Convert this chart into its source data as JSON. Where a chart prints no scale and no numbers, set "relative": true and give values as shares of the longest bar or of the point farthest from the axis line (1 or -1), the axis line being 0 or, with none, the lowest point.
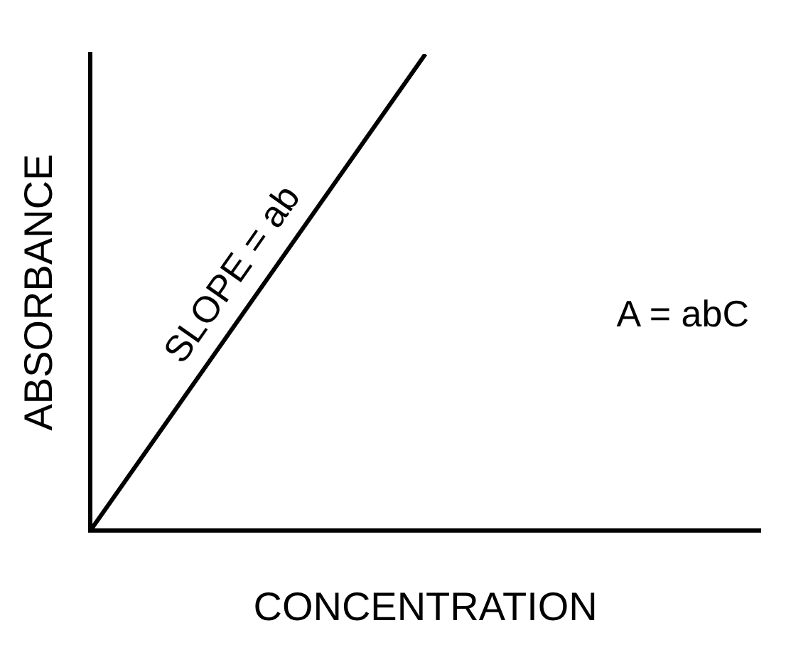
{
  "chart_data": {
    "type": "line",
    "relative": true,
    "xlabel": "CONCENTRATION",
    "ylabel": "ABSORBANCE",
    "categories": [
      null,
      null,
      null
    ],
    "series": [
      {
        "color": "#000000",
        "values": [
          0,
          1,
          null
        ]
      }
    ],
    "annotations": [
      "SLOPE = ab",
      "A = abC"
    ],
    "grid": false,
    "legend": false,
    "marker": "none",
    "line_style": "solid"
  }
}
